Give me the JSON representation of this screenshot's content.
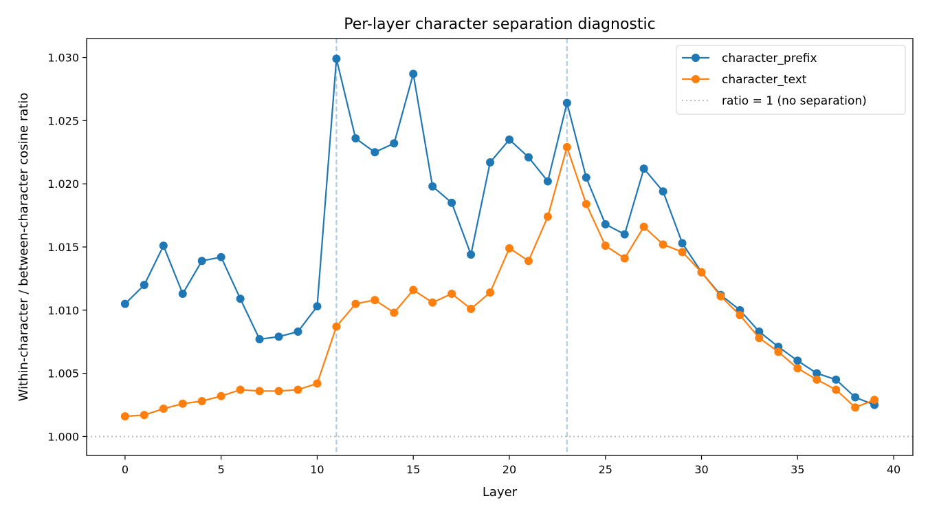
{
  "chart_data": {
    "type": "line",
    "title": "Per-layer character separation diagnostic",
    "xlabel": "Layer",
    "ylabel": "Within-character / between-character cosine ratio",
    "xlim": [
      -2,
      41
    ],
    "ylim": [
      0.9985,
      1.0315
    ],
    "xticks": [
      0,
      5,
      10,
      15,
      20,
      25,
      30,
      35,
      40
    ],
    "yticks": [
      1.0,
      1.005,
      1.01,
      1.015,
      1.02,
      1.025,
      1.03
    ],
    "xtick_labels": [
      "0",
      "5",
      "10",
      "15",
      "20",
      "25",
      "30",
      "35",
      "40"
    ],
    "ytick_labels": [
      "1.000",
      "1.005",
      "1.010",
      "1.015",
      "1.020",
      "1.025",
      "1.030"
    ],
    "grid": false,
    "legend_position": "top-right",
    "x": [
      0,
      1,
      2,
      3,
      4,
      5,
      6,
      7,
      8,
      9,
      10,
      11,
      12,
      13,
      14,
      15,
      16,
      17,
      18,
      19,
      20,
      21,
      22,
      23,
      24,
      25,
      26,
      27,
      28,
      29,
      30,
      31,
      32,
      33,
      34,
      35,
      36,
      37,
      38,
      39
    ],
    "series": [
      {
        "name": "character_prefix",
        "color": "#1f77b4",
        "values": [
          1.0105,
          1.012,
          1.0151,
          1.0113,
          1.0139,
          1.0142,
          1.0109,
          1.0077,
          1.0079,
          1.0083,
          1.0103,
          1.0299,
          1.0236,
          1.0225,
          1.0232,
          1.0287,
          1.0198,
          1.0185,
          1.0144,
          1.0217,
          1.0235,
          1.0221,
          1.0202,
          1.0264,
          1.0205,
          1.0168,
          1.016,
          1.0212,
          1.0194,
          1.0153,
          1.013,
          1.0112,
          1.01,
          1.0083,
          1.0071,
          1.006,
          1.005,
          1.0045,
          1.0031,
          1.0025
        ]
      },
      {
        "name": "character_text",
        "color": "#ff7f0e",
        "values": [
          1.0016,
          1.0017,
          1.0022,
          1.0026,
          1.0028,
          1.0032,
          1.0037,
          1.0036,
          1.0036,
          1.0037,
          1.0042,
          1.0087,
          1.0105,
          1.0108,
          1.0098,
          1.0116,
          1.0106,
          1.0113,
          1.0101,
          1.0114,
          1.0149,
          1.0139,
          1.0174,
          1.0229,
          1.0184,
          1.0151,
          1.0141,
          1.0166,
          1.0152,
          1.0146,
          1.013,
          1.0111,
          1.0096,
          1.0078,
          1.0067,
          1.0054,
          1.0045,
          1.0037,
          1.0023,
          1.0029
        ]
      }
    ],
    "reference_line": {
      "name": "ratio = 1 (no separation)",
      "y": 1.0,
      "color": "#bbbbbb"
    },
    "vertical_markers": {
      "x": [
        11,
        23
      ],
      "color": "#a6c8e6"
    }
  }
}
